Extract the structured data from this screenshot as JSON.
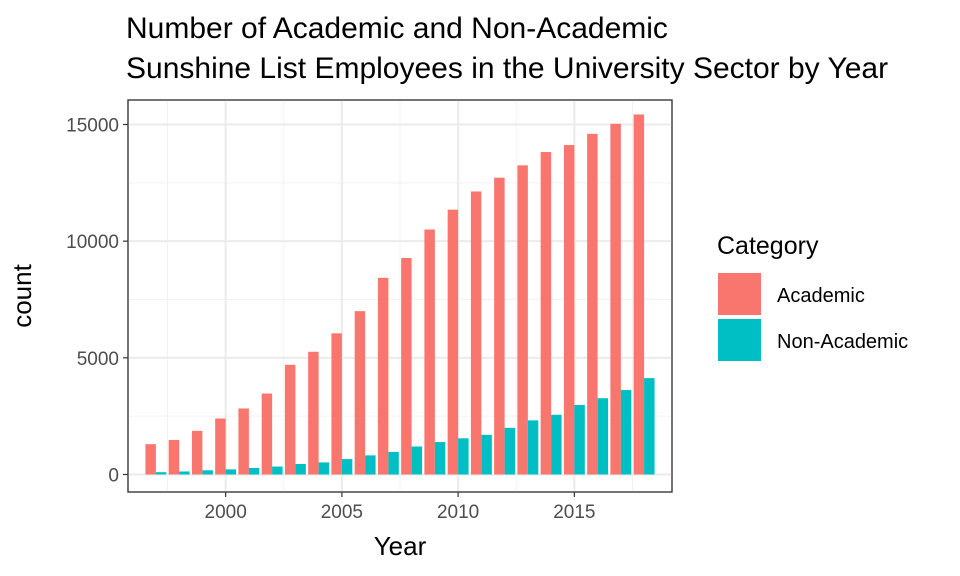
{
  "chart_data": {
    "type": "bar",
    "title": "Number of Academic and Non-Academic Sunshine List Employees in the University Sector by Year",
    "title_lines": [
      "Number of Academic and Non-Academic",
      "Sunshine List Employees in the University Sector by Year"
    ],
    "xlabel": "Year",
    "ylabel": "count",
    "x": [
      1997,
      1998,
      1999,
      2000,
      2001,
      2002,
      2003,
      2004,
      2005,
      2006,
      2007,
      2008,
      2009,
      2010,
      2011,
      2012,
      2013,
      2014,
      2015,
      2016,
      2017,
      2018
    ],
    "series": [
      {
        "name": "Academic",
        "color": "#F8766D",
        "values": [
          1300,
          1480,
          1870,
          2400,
          2830,
          3470,
          4700,
          5260,
          6050,
          7000,
          8430,
          9280,
          10500,
          11350,
          12130,
          12720,
          13250,
          13820,
          14120,
          14600,
          15030,
          15430
        ]
      },
      {
        "name": "Non-Academic",
        "color": "#00BFC4",
        "values": [
          100,
          130,
          180,
          220,
          280,
          340,
          450,
          520,
          660,
          820,
          970,
          1200,
          1390,
          1550,
          1700,
          2000,
          2320,
          2560,
          2980,
          3270,
          3620,
          4130
        ]
      }
    ],
    "xticks": [
      2000,
      2005,
      2010,
      2015
    ],
    "yticks": [
      0,
      5000,
      10000,
      15000
    ],
    "xlim": [
      1995.8,
      2019.2
    ],
    "ylim": [
      -750,
      16050
    ],
    "legend": {
      "title": "Category",
      "position": "right"
    },
    "grid": true
  }
}
